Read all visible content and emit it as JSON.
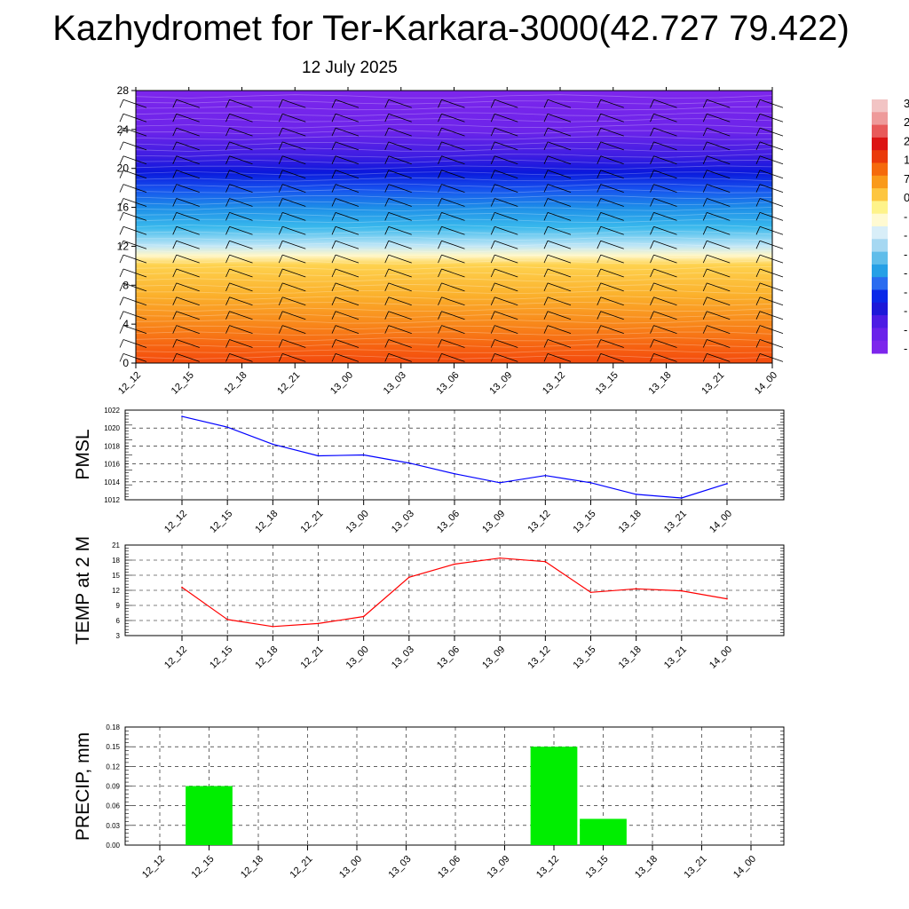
{
  "title": "Kazhydromet for Ter-Karkara-3000(42.727 79.422)",
  "subtitle": "12 July 2025",
  "time_labels": [
    "12_12",
    "12_15",
    "12_18",
    "12_21",
    "13_00",
    "13_03",
    "13_06",
    "13_09",
    "13_12",
    "13_15",
    "13_18",
    "13_21",
    "14_00"
  ],
  "colorbar": {
    "labels": [
      "3",
      "2",
      "2",
      "1",
      "7",
      "0",
      "-",
      "-",
      "-",
      "-",
      "-",
      "-",
      "-",
      "-"
    ],
    "colors": [
      "#f2c4c4",
      "#ee9a9a",
      "#e85a5a",
      "#dc1414",
      "#ea3a0a",
      "#f56a0c",
      "#fa9a1a",
      "#fdc640",
      "#fef38a",
      "#fffad2",
      "#d8eef8",
      "#a6d8f2",
      "#5fbdea",
      "#26a0e6",
      "#2a6cf0",
      "#0a28e8",
      "#1d18d8",
      "#4d1ce4",
      "#6a22ea",
      "#7d26ec"
    ]
  },
  "chart_data": [
    {
      "type": "heatmap",
      "title": "",
      "xlabel": "",
      "ylabel": "",
      "ylim": [
        0,
        28
      ],
      "yticks": [
        0,
        4,
        8,
        12,
        16,
        20,
        24,
        28
      ],
      "x": [
        "12_12",
        "12_15",
        "12_18",
        "12_21",
        "13_00",
        "13_03",
        "13_06",
        "13_09",
        "13_12",
        "13_15",
        "13_18",
        "13_21",
        "14_00"
      ],
      "bands": [
        {
          "y": [
            0,
            2
          ],
          "value": 28
        },
        {
          "y": [
            2,
            5
          ],
          "value": 22
        },
        {
          "y": [
            5,
            8
          ],
          "value": 14
        },
        {
          "y": [
            8,
            11
          ],
          "value": 6
        },
        {
          "y": [
            11,
            13
          ],
          "value": -6
        },
        {
          "y": [
            13,
            16
          ],
          "value": -16
        },
        {
          "y": [
            16,
            18
          ],
          "value": -26
        },
        {
          "y": [
            18,
            21
          ],
          "value": -34
        },
        {
          "y": [
            21,
            28
          ],
          "value": -40
        }
      ]
    },
    {
      "type": "line",
      "ylabel": "PMSL",
      "ylim": [
        1012,
        1022
      ],
      "yticks": [
        1012,
        1014,
        1016,
        1018,
        1020,
        1022
      ],
      "categories": [
        "12_12",
        "12_15",
        "12_18",
        "12_21",
        "13_00",
        "13_03",
        "13_06",
        "13_09",
        "13_12",
        "13_15",
        "13_18",
        "13_21",
        "14_00"
      ],
      "values": [
        1021.3,
        1020.1,
        1018.2,
        1016.9,
        1017.0,
        1016.1,
        1014.9,
        1013.9,
        1014.7,
        1013.9,
        1012.6,
        1012.2,
        1013.8
      ],
      "color": "#0000ff",
      "grid": true
    },
    {
      "type": "line",
      "ylabel": "TEMP at 2 M",
      "ylim": [
        3,
        21
      ],
      "yticks": [
        3,
        6,
        9,
        12,
        15,
        18,
        21
      ],
      "categories": [
        "12_12",
        "12_15",
        "12_18",
        "12_21",
        "13_00",
        "13_03",
        "13_06",
        "13_09",
        "13_12",
        "13_15",
        "13_18",
        "13_21",
        "14_00"
      ],
      "values": [
        12.6,
        6.2,
        4.8,
        5.4,
        6.8,
        14.6,
        17.2,
        18.4,
        17.7,
        11.6,
        12.3,
        11.9,
        10.3
      ],
      "color": "#ff0000",
      "grid": true
    },
    {
      "type": "bar",
      "ylabel": "PRECIP, mm",
      "ylim": [
        0,
        0.18
      ],
      "yticks": [
        "0.00",
        "0.03",
        "0.06",
        "0.09",
        "0.12",
        "0.15",
        "0.18"
      ],
      "categories": [
        "12_12",
        "12_15",
        "12_18",
        "12_21",
        "13_00",
        "13_03",
        "13_06",
        "13_09",
        "13_12",
        "13_15",
        "13_18",
        "13_21",
        "14_00"
      ],
      "values": [
        0,
        0.09,
        0,
        0,
        0,
        0,
        0,
        0,
        0.15,
        0.04,
        0,
        0,
        0
      ],
      "color": "#00ee00",
      "grid": true
    }
  ]
}
